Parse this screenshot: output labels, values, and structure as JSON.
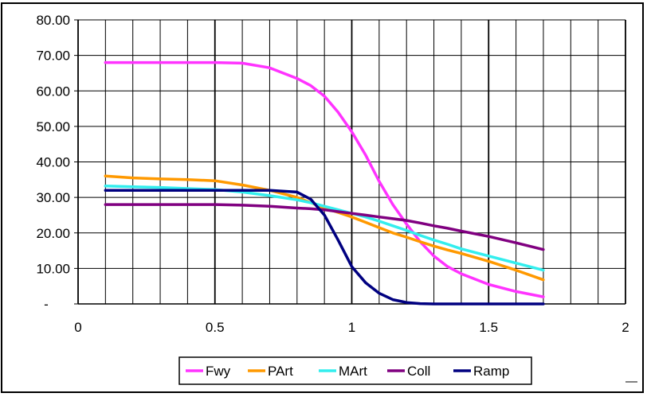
{
  "chart_data": {
    "type": "line",
    "title": "",
    "xlabel": "",
    "ylabel": "",
    "xlim": [
      0,
      2
    ],
    "ylim": [
      0,
      80
    ],
    "x_ticks": [
      "0",
      "0.5",
      "1",
      "1.5",
      "2"
    ],
    "y_ticks": [
      "-",
      "10.00",
      "20.00",
      "30.00",
      "40.00",
      "50.00",
      "60.00",
      "70.00",
      "80.00"
    ],
    "grid": true,
    "legend_position": "bottom",
    "x": [
      0.1,
      0.2,
      0.3,
      0.4,
      0.5,
      0.6,
      0.7,
      0.8,
      0.85,
      0.9,
      0.95,
      1.0,
      1.05,
      1.1,
      1.15,
      1.2,
      1.25,
      1.3,
      1.35,
      1.4,
      1.5,
      1.6,
      1.7
    ],
    "series": [
      {
        "name": "Fwy",
        "color": "#ff33ff",
        "values": [
          68,
          68,
          68,
          68,
          68,
          67.8,
          66.5,
          63.5,
          61.5,
          58.5,
          54,
          48.5,
          42,
          34.5,
          28,
          22.5,
          17.5,
          13.5,
          10.5,
          8.5,
          5.5,
          3.5,
          2
        ]
      },
      {
        "name": "PArt",
        "color": "#ff9900",
        "values": [
          36,
          35.5,
          35.2,
          35,
          34.7,
          33.5,
          32,
          30,
          28.5,
          27,
          25.8,
          24.5,
          23,
          21.5,
          20,
          18.8,
          17.5,
          16.3,
          15.2,
          14.2,
          12,
          9.5,
          6.8
        ]
      },
      {
        "name": "MArt",
        "color": "#33eeee",
        "values": [
          33.2,
          33,
          32.8,
          32.5,
          32.2,
          31.5,
          30.5,
          29.3,
          28.5,
          27.5,
          26.5,
          25.5,
          24.5,
          23.3,
          22,
          20.7,
          19.3,
          18,
          16.8,
          15.5,
          13.5,
          11.5,
          9.5
        ]
      },
      {
        "name": "Coll",
        "color": "#800080",
        "values": [
          28,
          28,
          28,
          28,
          28,
          27.8,
          27.5,
          27,
          26.8,
          26.5,
          26,
          25.5,
          25,
          24.5,
          24,
          23.5,
          22.8,
          22,
          21.3,
          20.5,
          19,
          17.2,
          15.3
        ]
      },
      {
        "name": "Ramp",
        "color": "#000080",
        "values": [
          32,
          32,
          32,
          32,
          32,
          32,
          32,
          31.5,
          29.5,
          25,
          18,
          10.5,
          6,
          3,
          1.2,
          0.4,
          0.1,
          0,
          0,
          0,
          0,
          0,
          0
        ]
      }
    ]
  }
}
